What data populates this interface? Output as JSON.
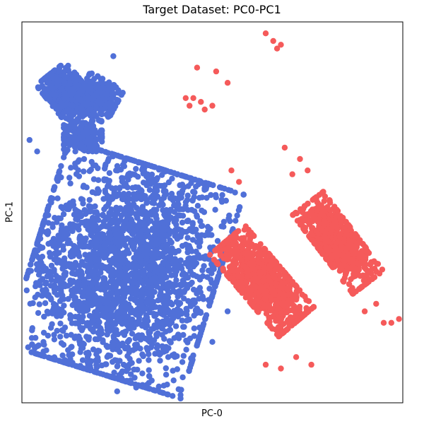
{
  "chart_data": {
    "type": "scatter",
    "title": "Target Dataset: PC0-PC1",
    "xlabel": "PC-0",
    "ylabel": "PC-1",
    "xlim": [
      0,
      100
    ],
    "ylim": [
      0,
      100
    ],
    "grid": false,
    "ticks_shown": false,
    "legend": "none",
    "series": [
      {
        "color": "#5070D8",
        "clusters": [
          {
            "center": [
              12,
              81
            ],
            "spread": [
              7,
              5
            ],
            "tilt": -0.9,
            "n": 520
          },
          {
            "center": [
              20,
              80
            ],
            "spread": [
              5,
              5
            ],
            "tilt": -0.5,
            "n": 260
          },
          {
            "center": [
              16,
              70
            ],
            "spread": [
              5,
              4
            ],
            "tilt": 0.0,
            "n": 200
          },
          {
            "center": [
              27,
              35
            ],
            "spread": [
              24,
              28
            ],
            "tilt": -0.3,
            "n": 2600
          }
        ],
        "points": [
          [
            2,
            69
          ],
          [
            4,
            66
          ],
          [
            24,
            91
          ],
          [
            40,
            52
          ],
          [
            49,
            27
          ],
          [
            54,
            24
          ],
          [
            30,
            4
          ],
          [
            25,
            3
          ],
          [
            40,
            17
          ],
          [
            50,
            16
          ]
        ]
      },
      {
        "color": "#F55A5A",
        "clusters": [
          {
            "center": [
              63,
              32
            ],
            "spread": [
              6,
              14
            ],
            "tilt": 0.7,
            "n": 900
          },
          {
            "center": [
              83,
              42
            ],
            "spread": [
              5,
              13
            ],
            "tilt": 0.65,
            "n": 700
          }
        ],
        "points": [
          [
            64,
            97
          ],
          [
            66,
            95
          ],
          [
            67,
            93
          ],
          [
            68,
            94
          ],
          [
            51,
            87
          ],
          [
            54,
            84
          ],
          [
            46,
            88
          ],
          [
            43,
            80
          ],
          [
            44,
            78
          ],
          [
            48,
            77
          ],
          [
            47,
            79
          ],
          [
            50,
            78
          ],
          [
            45,
            80
          ],
          [
            69,
            67
          ],
          [
            73,
            64
          ],
          [
            75,
            61
          ],
          [
            71,
            60
          ],
          [
            55,
            61
          ],
          [
            57,
            58
          ],
          [
            64,
            10
          ],
          [
            68,
            9
          ],
          [
            72,
            12
          ],
          [
            76,
            10
          ],
          [
            90,
            24
          ],
          [
            95,
            21
          ],
          [
            97,
            21
          ],
          [
            99,
            22
          ],
          [
            93,
            26
          ]
        ]
      }
    ]
  }
}
